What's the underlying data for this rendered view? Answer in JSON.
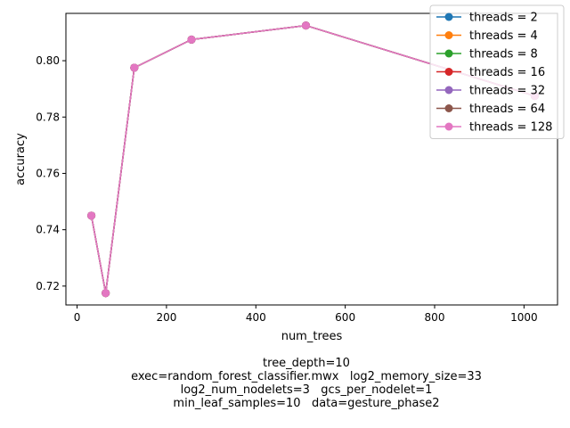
{
  "chart_data": {
    "type": "line",
    "title": "",
    "xlabel": "num_trees",
    "ylabel": "accuracy",
    "xlim": [
      -25,
      1075
    ],
    "ylim": [
      0.7133,
      0.8168
    ],
    "xticks": [
      0,
      200,
      400,
      600,
      800,
      1000
    ],
    "yticks": [
      0.72,
      0.74,
      0.76,
      0.78,
      0.8
    ],
    "grid": false,
    "legend_position": "top-right",
    "x": [
      32,
      64,
      128,
      256,
      512,
      1024
    ],
    "series": [
      {
        "name": "threads = 2",
        "color": "#1f77b4",
        "values": [
          0.745,
          0.7175,
          0.7975,
          0.8075,
          0.8125,
          0.7875
        ]
      },
      {
        "name": "threads = 4",
        "color": "#ff7f0e",
        "values": [
          0.745,
          0.7175,
          0.7975,
          0.8075,
          0.8125,
          0.7875
        ]
      },
      {
        "name": "threads = 8",
        "color": "#2ca02c",
        "values": [
          0.745,
          0.7175,
          0.7975,
          0.8075,
          0.8125,
          0.7875
        ]
      },
      {
        "name": "threads = 16",
        "color": "#d62728",
        "values": [
          0.745,
          0.7175,
          0.7975,
          0.8075,
          0.8125,
          0.7875
        ]
      },
      {
        "name": "threads = 32",
        "color": "#9467bd",
        "values": [
          0.745,
          0.7175,
          0.7975,
          0.8075,
          0.8125,
          0.7875
        ]
      },
      {
        "name": "threads = 64",
        "color": "#8c564b",
        "values": [
          0.745,
          0.7175,
          0.7975,
          0.8075,
          0.8125,
          0.7875
        ]
      },
      {
        "name": "threads = 128",
        "color": "#e377c2",
        "values": [
          0.745,
          0.7175,
          0.7975,
          0.8075,
          0.8125,
          0.7875
        ]
      }
    ],
    "caption": {
      "line1": "tree_depth=10",
      "line2": "exec=random_forest_classifier.mwx   log2_memory_size=33",
      "line3": "log2_num_nodelets=3   gcs_per_nodelet=1",
      "line4": "min_leaf_samples=10   data=gesture_phase2"
    }
  }
}
